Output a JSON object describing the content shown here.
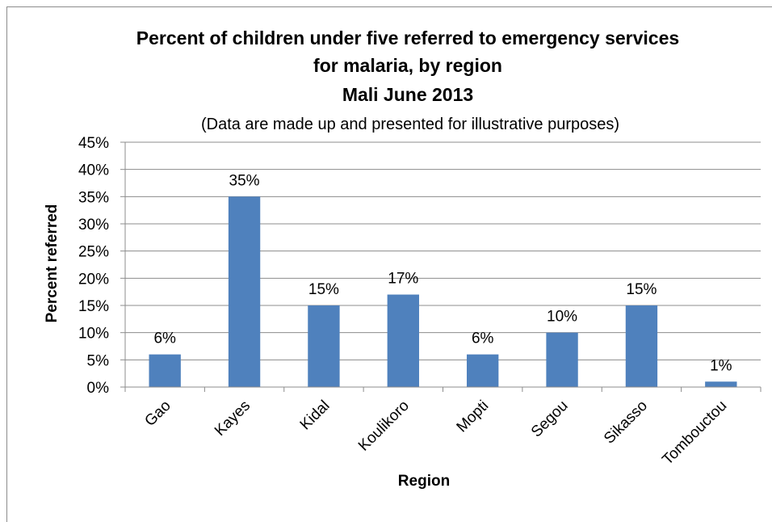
{
  "chart_data": {
    "type": "bar",
    "title_lines": [
      "Percent of children under five referred to emergency services",
      "for malaria, by region",
      "Mali June 2013"
    ],
    "subtitle": "(Data are made up and presented for illustrative purposes)",
    "xlabel": "Region",
    "ylabel": "Percent referred",
    "categories": [
      "Gao",
      "Kayes",
      "Kidal",
      "Koulikoro",
      "Mopti",
      "Segou",
      "Sikasso",
      "Tombouctou"
    ],
    "values": [
      6,
      35,
      15,
      17,
      6,
      10,
      15,
      1
    ],
    "data_labels": [
      "6%",
      "35%",
      "15%",
      "17%",
      "6%",
      "10%",
      "15%",
      "1%"
    ],
    "ylim": [
      0,
      45
    ],
    "yticks": [
      0,
      5,
      10,
      15,
      20,
      25,
      30,
      35,
      40,
      45
    ],
    "ytick_labels": [
      "0%",
      "5%",
      "10%",
      "15%",
      "20%",
      "25%",
      "30%",
      "35%",
      "40%",
      "45%"
    ],
    "grid": true,
    "legend": "none",
    "bar_color": "#4f81bd"
  }
}
